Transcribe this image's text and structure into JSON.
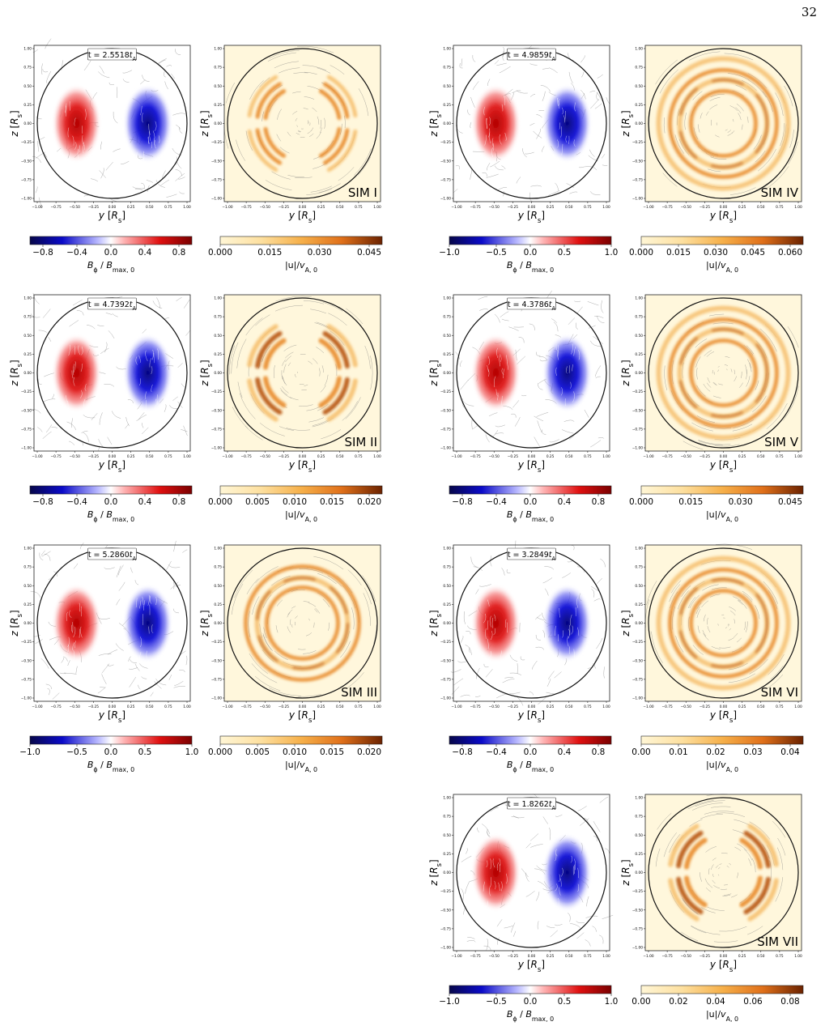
{
  "page": {
    "number": "32"
  },
  "axes": {
    "xlabel": "y [R_s]",
    "ylabel": "z [R_s]"
  },
  "colorbar_labels": {
    "bphi": "B_φ / B_max,0",
    "u": "|u|/v_A,0"
  },
  "sims": [
    {
      "id": "SIM I",
      "time": "t = 2.5518t_A",
      "bphi_ticks": [
        "−0.8",
        "−0.4",
        "0.0",
        "0.4",
        "0.8"
      ],
      "bphi_range": [
        -0.95,
        0.95
      ],
      "u_ticks": [
        "0.000",
        "0.015",
        "0.030",
        "0.045"
      ],
      "u_max": 0.05,
      "u_pattern": "four-arcs"
    },
    {
      "id": "SIM II",
      "time": "t = 4.7392t_A",
      "bphi_ticks": [
        "−0.8",
        "−0.4",
        "0.0",
        "0.4",
        "0.8"
      ],
      "bphi_range": [
        -0.95,
        0.95
      ],
      "u_ticks": [
        "0.000",
        "0.005",
        "0.010",
        "0.015",
        "0.020"
      ],
      "u_max": 0.021,
      "u_pattern": "four-arcs-strong"
    },
    {
      "id": "SIM III",
      "time": "t = 5.2860t_A",
      "bphi_ticks": [
        "−1.0",
        "−0.5",
        "0.0",
        "0.5",
        "1.0"
      ],
      "bphi_range": [
        -1.0,
        1.0
      ],
      "u_ticks": [
        "0.000",
        "0.005",
        "0.010",
        "0.015",
        "0.020"
      ],
      "u_max": 0.022,
      "u_pattern": "rings-wide"
    },
    {
      "id": "SIM IV",
      "time": "t = 4.9859t_A",
      "bphi_ticks": [
        "−1.0",
        "−0.5",
        "0.0",
        "0.5",
        "1.0"
      ],
      "bphi_range": [
        -1.0,
        1.0
      ],
      "u_ticks": [
        "0.000",
        "0.015",
        "0.030",
        "0.045",
        "0.060"
      ],
      "u_max": 0.065,
      "u_pattern": "rings"
    },
    {
      "id": "SIM V",
      "time": "t = 4.3786t_A",
      "bphi_ticks": [
        "−0.8",
        "−0.4",
        "0.0",
        "0.4",
        "0.8"
      ],
      "bphi_range": [
        -0.95,
        0.95
      ],
      "u_ticks": [
        "0.000",
        "0.015",
        "0.030",
        "0.045"
      ],
      "u_max": 0.05,
      "u_pattern": "rings"
    },
    {
      "id": "SIM VI",
      "time": "t = 3.2849t_A",
      "bphi_ticks": [
        "−0.8",
        "−0.4",
        "0.0",
        "0.4",
        "0.8"
      ],
      "bphi_range": [
        -0.95,
        0.95
      ],
      "u_ticks": [
        "0.00",
        "0.01",
        "0.02",
        "0.03",
        "0.04"
      ],
      "u_max": 0.043,
      "u_pattern": "rings"
    },
    {
      "id": "SIM VII",
      "time": "t = 1.8262t_A",
      "bphi_ticks": [
        "−1.0",
        "−0.5",
        "0.0",
        "0.5",
        "1.0"
      ],
      "bphi_range": [
        -1.0,
        1.0
      ],
      "u_ticks": [
        "0.00",
        "0.02",
        "0.04",
        "0.06",
        "0.08"
      ],
      "u_max": 0.09,
      "u_pattern": "four-arcs-strong"
    }
  ],
  "tick_labels": [
    "−1.00",
    "−0.75",
    "−0.50",
    "−0.25",
    "0.00",
    "0.25",
    "0.50",
    "0.75",
    "1.00"
  ],
  "colors": {
    "bphi_neg": "#0a0a9c",
    "bphi_pos": "#c00000",
    "u_low": "#fff4cf",
    "u_high": "#6b2200"
  }
}
